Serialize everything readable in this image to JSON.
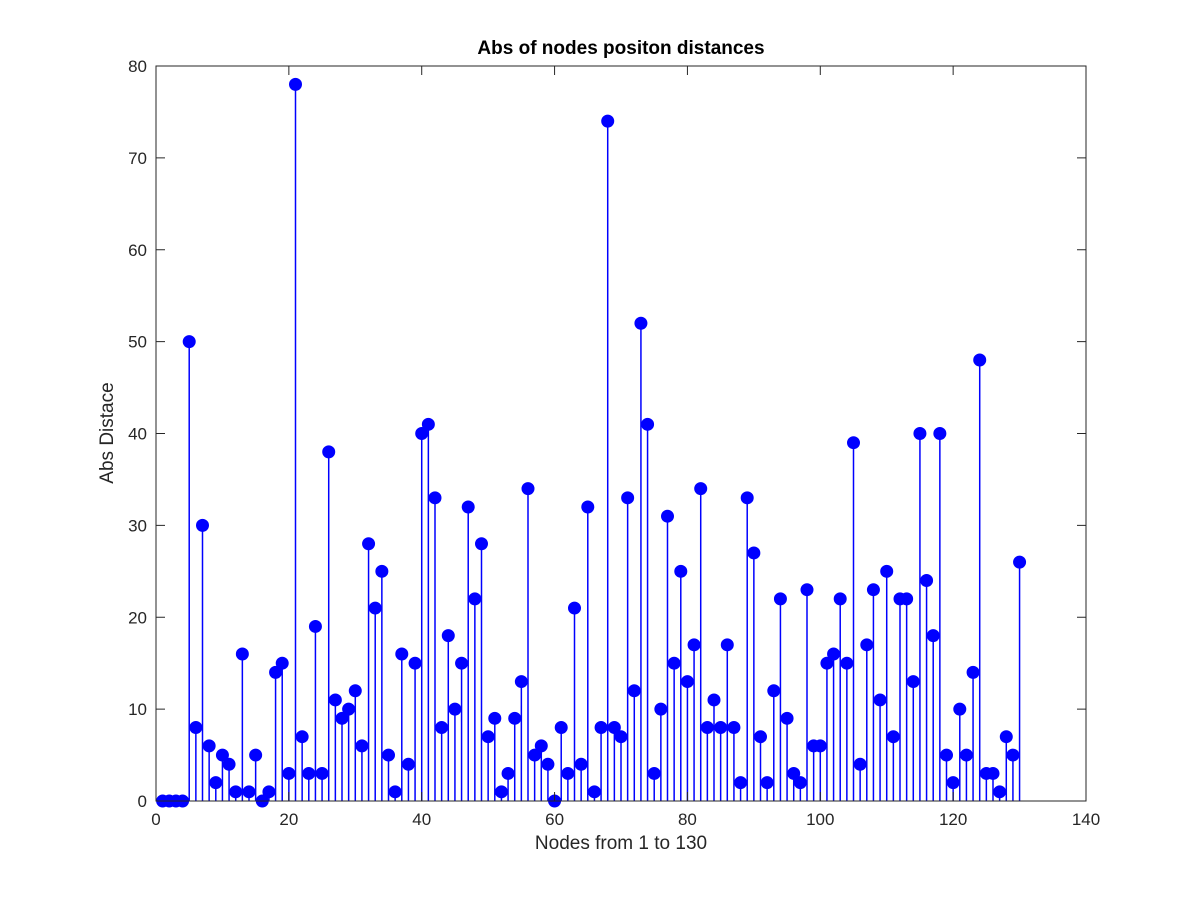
{
  "chart_data": {
    "type": "stem",
    "title": "Abs of nodes positon distances",
    "xlabel": "Nodes from 1 to 130",
    "ylabel": "Abs Distace",
    "xlim": [
      0,
      140
    ],
    "ylim": [
      0,
      80
    ],
    "xticks": [
      0,
      20,
      40,
      60,
      80,
      100,
      120,
      140
    ],
    "yticks": [
      0,
      10,
      20,
      30,
      40,
      50,
      60,
      70,
      80
    ],
    "xtick_labels": [
      "0",
      "20",
      "40",
      "60",
      "80",
      "100",
      "120",
      "140"
    ],
    "ytick_labels": [
      "0",
      "10",
      "20",
      "30",
      "40",
      "50",
      "60",
      "70",
      "80"
    ],
    "grid": false,
    "box": true,
    "colors": {
      "series": "#0000ff",
      "axes": "#262626",
      "background": "#ffffff"
    },
    "x_start": 1,
    "values": [
      0,
      0,
      0,
      0,
      50,
      8,
      30,
      6,
      2,
      5,
      4,
      1,
      16,
      1,
      5,
      0,
      1,
      14,
      15,
      3,
      78,
      7,
      3,
      19,
      3,
      38,
      11,
      9,
      10,
      12,
      6,
      28,
      21,
      25,
      5,
      1,
      16,
      4,
      15,
      40,
      41,
      33,
      8,
      18,
      10,
      15,
      32,
      22,
      28,
      7,
      9,
      1,
      3,
      9,
      13,
      34,
      5,
      6,
      4,
      0,
      8,
      3,
      21,
      4,
      32,
      1,
      8,
      74,
      8,
      7,
      33,
      12,
      52,
      41,
      3,
      10,
      31,
      15,
      25,
      13,
      17,
      34,
      8,
      11,
      8,
      17,
      8,
      2,
      33,
      27,
      7,
      2,
      12,
      22,
      9,
      3,
      2,
      23,
      6,
      6,
      15,
      16,
      22,
      15,
      39,
      4,
      17,
      23,
      11,
      25,
      7,
      22,
      22,
      13,
      40,
      24,
      18,
      40,
      5,
      2,
      10,
      5,
      14,
      48,
      3,
      3,
      1,
      7,
      5,
      26
    ]
  }
}
